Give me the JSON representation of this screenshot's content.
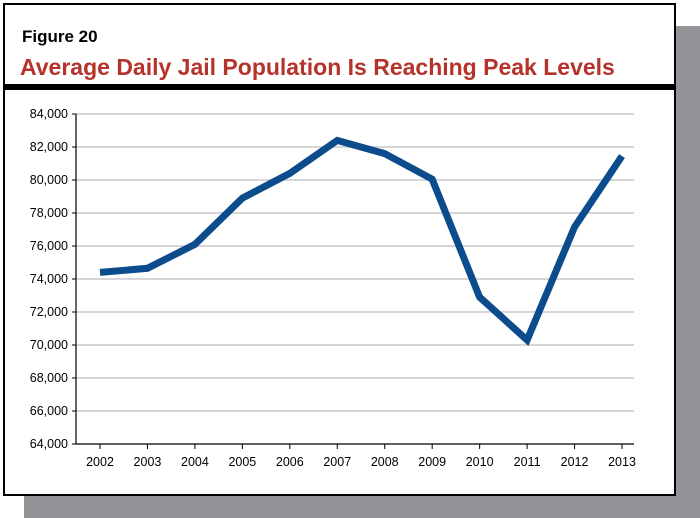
{
  "figure_label": "Figure 20",
  "title": "Average Daily Jail Population Is Reaching Peak Levels",
  "colors": {
    "line": "#0d4c8c",
    "title": "#b5332a",
    "grid": "#c8c8c8",
    "shadow": "#949498"
  },
  "chart_data": {
    "type": "line",
    "title": "Average Daily Jail Population Is Reaching Peak Levels",
    "xlabel": "",
    "ylabel": "",
    "categories": [
      "2002",
      "2003",
      "2004",
      "2005",
      "2006",
      "2007",
      "2008",
      "2009",
      "2010",
      "2011",
      "2012",
      "2013"
    ],
    "values": [
      74400,
      74650,
      76100,
      78900,
      80400,
      82400,
      81600,
      80050,
      72900,
      70300,
      77150,
      81450
    ],
    "ylim": [
      64000,
      84000
    ],
    "yticks": [
      "64,000",
      "66,000",
      "68,000",
      "70,000",
      "72,000",
      "74,000",
      "76,000",
      "78,000",
      "80,000",
      "82,000",
      "84,000"
    ],
    "grid": "horizontal",
    "legend": "none"
  }
}
